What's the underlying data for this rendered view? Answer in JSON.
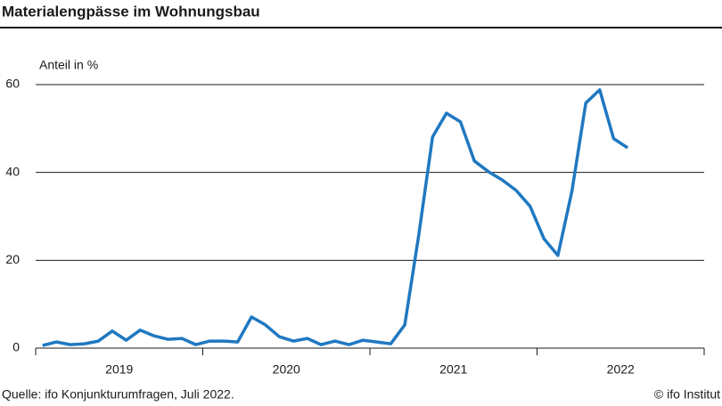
{
  "chart_data": {
    "type": "line",
    "title": "Materialengpässe im Wohnungsbau",
    "y_label": "Anteil in %",
    "source": "Quelle: ifo Konjunkturumfragen, Juli 2022.",
    "credit": "© ifo Institut",
    "categories": [
      null,
      null,
      null,
      null,
      null,
      null,
      null,
      null,
      null,
      null,
      null,
      null,
      null,
      null,
      null,
      null,
      null,
      null,
      null,
      null,
      null,
      null,
      null,
      null,
      null,
      null,
      null,
      null,
      null,
      null,
      null,
      null,
      null,
      null,
      null,
      null,
      null,
      null,
      null,
      null,
      null,
      null,
      null
    ],
    "year_labels": [
      "2019",
      "2020",
      "2021",
      "2022"
    ],
    "series": [
      {
        "name": "Anteil",
        "color": "#1f78c1",
        "values": [
          0.6,
          1.4,
          0.8,
          1.0,
          1.6,
          3.9,
          1.8,
          4.1,
          2.8,
          2.0,
          2.2,
          0.8,
          1.6,
          1.6,
          1.4,
          7.1,
          5.3,
          2.6,
          1.6,
          2.2,
          0.8,
          1.6,
          0.8,
          1.8,
          1.4,
          1.0,
          5.3,
          25.6,
          48.1,
          53.5,
          51.5,
          42.6,
          40.2,
          38.3,
          35.9,
          32.3,
          24.9,
          21.1,
          35.7,
          55.8,
          58.8,
          47.7,
          45.6
        ]
      }
    ],
    "ylim": [
      0,
      60
    ],
    "yticks": [
      0,
      20,
      40,
      60
    ],
    "grid": true
  }
}
